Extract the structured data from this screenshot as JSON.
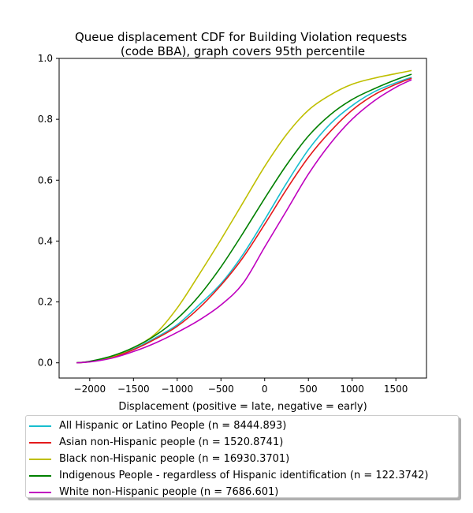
{
  "chart_data": {
    "type": "line",
    "title": "Queue displacement CDF for Building Violation  requests\n(code BBA), graph covers 95th percentile",
    "xlabel": "Displacement (positive = late, negative = early)",
    "ylabel": "",
    "xlim": [
      -2350,
      1850
    ],
    "ylim": [
      -0.05,
      1.0
    ],
    "x_ticks": [
      -2000,
      -1500,
      -1000,
      -500,
      0,
      500,
      1000,
      1500
    ],
    "x_tick_labels": [
      "−2000",
      "−1500",
      "−1000",
      "−500",
      "0",
      "500",
      "1000",
      "1500"
    ],
    "y_ticks": [
      0.0,
      0.2,
      0.4,
      0.6,
      0.8,
      1.0
    ],
    "y_tick_labels": [
      "0.0",
      "0.2",
      "0.4",
      "0.6",
      "0.8",
      "1.0"
    ],
    "grid": false,
    "legend_position": "below plot",
    "series": [
      {
        "name": "All Hispanic or Latino People (n = 8444.893)",
        "color": "#17becf",
        "x": [
          -2150,
          -2000,
          -1750,
          -1500,
          -1250,
          -1000,
          -750,
          -500,
          -250,
          0,
          250,
          500,
          750,
          1000,
          1250,
          1500,
          1680
        ],
        "y": [
          0.0,
          0.004,
          0.018,
          0.045,
          0.082,
          0.125,
          0.19,
          0.26,
          0.355,
          0.47,
          0.59,
          0.7,
          0.785,
          0.845,
          0.89,
          0.92,
          0.938
        ]
      },
      {
        "name": "Asian non-Hispanic people (n = 1520.8741)",
        "color": "#e41a1c",
        "x": [
          -2150,
          -2000,
          -1750,
          -1500,
          -1250,
          -1000,
          -750,
          -500,
          -250,
          0,
          250,
          500,
          750,
          1000,
          1250,
          1500,
          1680
        ],
        "y": [
          0.0,
          0.004,
          0.017,
          0.043,
          0.078,
          0.12,
          0.18,
          0.255,
          0.345,
          0.455,
          0.57,
          0.675,
          0.76,
          0.83,
          0.88,
          0.915,
          0.935
        ]
      },
      {
        "name": "Black non-Hispanic people (n = 16930.3701)",
        "color": "#bfbf00",
        "x": [
          -2150,
          -2000,
          -1750,
          -1500,
          -1250,
          -1000,
          -750,
          -500,
          -250,
          0,
          250,
          500,
          750,
          1000,
          1250,
          1500,
          1680
        ],
        "y": [
          0.0,
          0.004,
          0.02,
          0.05,
          0.095,
          0.18,
          0.29,
          0.405,
          0.525,
          0.645,
          0.75,
          0.83,
          0.88,
          0.915,
          0.935,
          0.95,
          0.96
        ]
      },
      {
        "name": "Indigenous People - regardless of Hispanic identification (n = 122.3742)",
        "color": "#008000",
        "x": [
          -2150,
          -2000,
          -1750,
          -1500,
          -1250,
          -1000,
          -750,
          -500,
          -250,
          0,
          250,
          500,
          750,
          1000,
          1250,
          1500,
          1680
        ],
        "y": [
          0.0,
          0.005,
          0.022,
          0.05,
          0.09,
          0.145,
          0.22,
          0.315,
          0.425,
          0.54,
          0.65,
          0.745,
          0.815,
          0.865,
          0.9,
          0.93,
          0.948
        ]
      },
      {
        "name": "White non-Hispanic people (n = 7686.601)",
        "color": "#bf00bf",
        "x": [
          -2150,
          -2000,
          -1750,
          -1500,
          -1250,
          -1000,
          -750,
          -500,
          -250,
          0,
          250,
          500,
          750,
          1000,
          1250,
          1500,
          1680
        ],
        "y": [
          0.0,
          0.003,
          0.015,
          0.037,
          0.065,
          0.1,
          0.14,
          0.19,
          0.26,
          0.38,
          0.5,
          0.62,
          0.72,
          0.8,
          0.86,
          0.905,
          0.93
        ]
      }
    ]
  }
}
